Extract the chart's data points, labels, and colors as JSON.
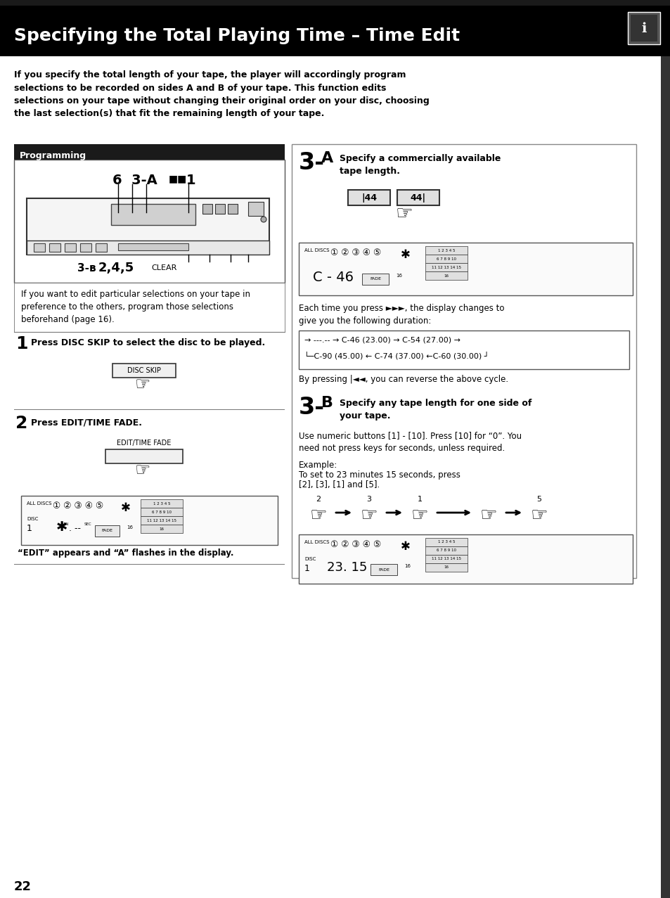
{
  "title": "Specifying the Total Playing Time – Time Edit",
  "bg_color": "#ffffff",
  "header_bg": "#000000",
  "header_text_color": "#ffffff",
  "intro_text": "If you specify the total length of your tape, the player will accordingly program\nselections to be recorded on sides A and B of your tape. This function edits\nselections on your tape without changing their original order on your disc, choosing\nthe last selection(s) that fit the remaining length of your tape.",
  "programming_label": "Programming",
  "step1_bold": "Press DISC SKIP to select the disc to be played.",
  "step2_bold": "Press EDIT/TIME FADE.",
  "step3a_bold": "Specify a commercially available\ntape length.",
  "step3b_bold": "Specify any tape length for one side of\nyour tape.",
  "use_numeric": "Use numeric buttons [1] - [10]. Press [10] for “0”. You\nneed not press keys for seconds, unless required.",
  "example_label": "Example:",
  "example_text": "To set to 23 minutes 15 seconds, press\n[2], [3], [1] and [5].",
  "cycle_text": "Each time you press ►►►, the display changes to\ngive you the following duration:",
  "cycle_top": "→ ---.-- → C-46 (23.00) → C-54 (27.00) →",
  "cycle_bot": "└─C-90 (45.00) ← C-74 (37.00) ←C-60 (30.00) ←┘",
  "reverse_text": "By pressing |◄◄, you can reverse the above cycle.",
  "edit_appears": "“EDIT” appears and “A” flashes in the display.",
  "note_text": "If you want to edit particular selections on your tape in\npreference to the others, program those selections\nbeforehand (page 16).",
  "page_num": "22"
}
